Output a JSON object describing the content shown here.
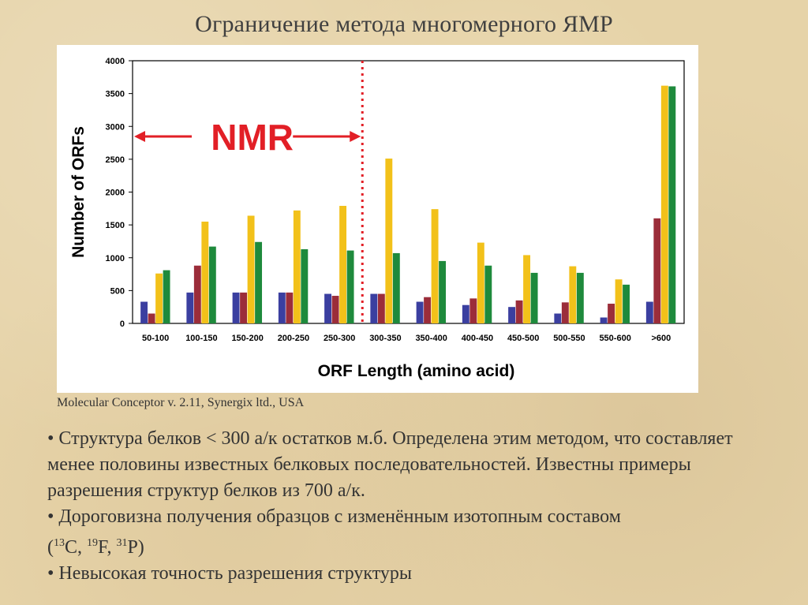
{
  "title": "Ограничение метода многомерного ЯМР",
  "caption": "Molecular Conceptor v. 2.11, Synergix ltd., USA",
  "bullets": {
    "b1": "• Структура белков < 300 а/к остатков м.б. Определена этим методом, что составляет менее половины известных белковых последовательностей. Известны примеры разрешения структур белков из 700 а/к.",
    "b2_main": "• Дороговизна получения образцов с изменённым изотопным составом",
    "b2_open": "(",
    "iso1_mass": "13",
    "iso1_el": "C, ",
    "iso2_mass": "19",
    "iso2_el": "F, ",
    "iso3_mass": "31",
    "iso3_el": "P)",
    "b3": "• Невысокая точность разрешения структуры"
  },
  "chart_data": {
    "type": "bar",
    "title": "",
    "xlabel": "ORF Length (amino acid)",
    "ylabel": "Number of ORFs",
    "ylim": [
      0,
      4000
    ],
    "yticks": [
      "0",
      "500",
      "1000",
      "1500",
      "2000",
      "2500",
      "3000",
      "3500",
      "4000"
    ],
    "grid": false,
    "categories": [
      "50-100",
      "100-150",
      "150-200",
      "200-250",
      "250-300",
      "300-350",
      "350-400",
      "400-450",
      "450-500",
      "500-550",
      "550-600",
      ">600"
    ],
    "series": [
      {
        "color": "#3b3fa0",
        "values": [
          330,
          470,
          470,
          470,
          450,
          450,
          330,
          280,
          250,
          150,
          90,
          330
        ]
      },
      {
        "color": "#9b2d3a",
        "values": [
          150,
          880,
          470,
          470,
          420,
          450,
          400,
          380,
          350,
          320,
          300,
          1600
        ]
      },
      {
        "color": "#f2c11a",
        "values": [
          760,
          1550,
          1640,
          1720,
          1790,
          2510,
          1740,
          1230,
          1040,
          870,
          670,
          3620
        ]
      },
      {
        "color": "#1e8a3c",
        "values": [
          810,
          1170,
          1240,
          1130,
          1110,
          1070,
          950,
          880,
          770,
          770,
          590,
          3610
        ]
      }
    ],
    "annotation": {
      "text": "NMR",
      "color": "#e21f26",
      "cutoff_after_category": "250-300"
    }
  }
}
